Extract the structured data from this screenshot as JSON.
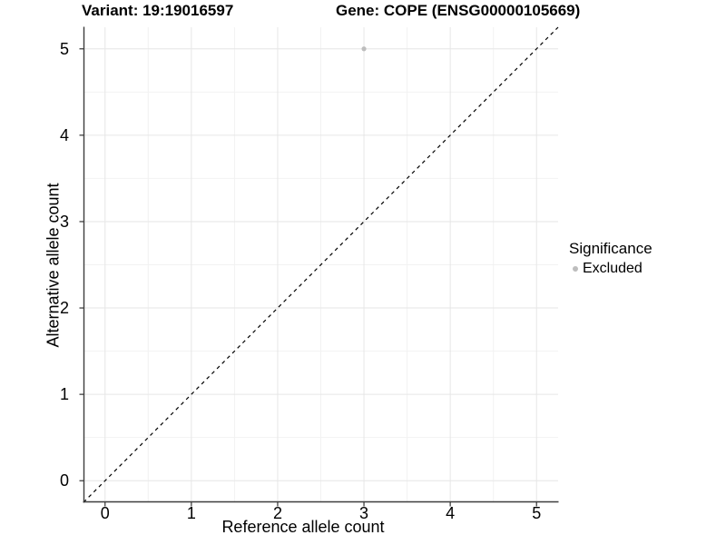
{
  "chart_data": {
    "type": "scatter",
    "title_left": "Variant: 19:19016597",
    "title_right": "Gene: COPE (ENSG00000105669)",
    "xlabel": "Reference allele count",
    "ylabel": "Alternative allele count",
    "xlim": [
      -0.25,
      5.25
    ],
    "ylim": [
      -0.25,
      5.25
    ],
    "x_ticks": [
      0,
      1,
      2,
      3,
      4,
      5
    ],
    "y_ticks": [
      0,
      1,
      2,
      3,
      4,
      5
    ],
    "grid": {
      "major": true,
      "minor": true,
      "major_color": "#E6E6E6",
      "minor_color": "#F2F2F2"
    },
    "axis_color": "#3D3D3D",
    "tick_color": "#333333",
    "reference_line": {
      "type": "identity",
      "slope": 1,
      "intercept": 0,
      "style": "dashed",
      "color": "#000000"
    },
    "series": [
      {
        "name": "Excluded",
        "color": "#BDBDBD",
        "point_radius": 2.6,
        "points": [
          [
            3,
            5
          ]
        ]
      }
    ],
    "legend": {
      "title": "Significance",
      "position": "right",
      "items": [
        {
          "label": "Excluded",
          "color": "#BDBDBD"
        }
      ]
    }
  }
}
